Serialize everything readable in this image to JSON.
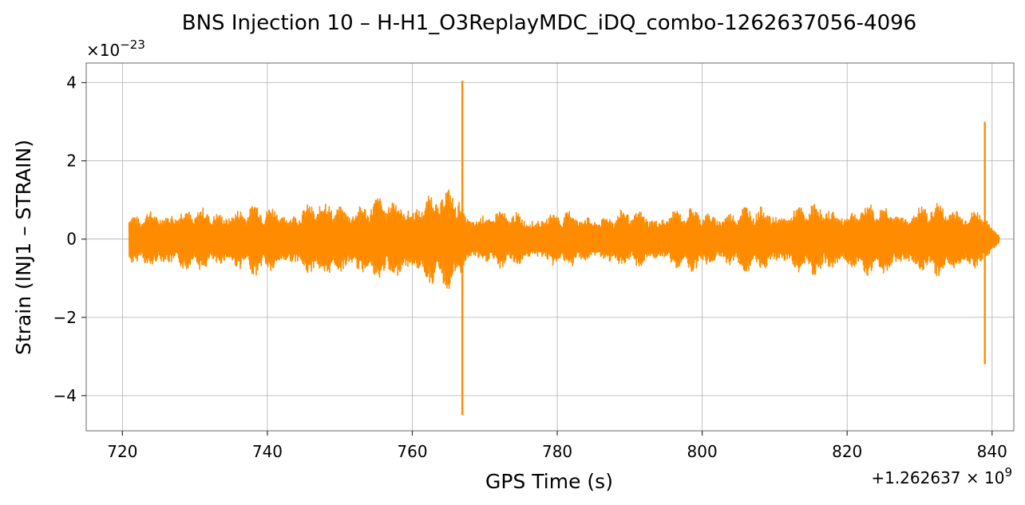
{
  "chart_data": {
    "type": "line",
    "title": "BNS Injection 10 – H-H1_O3ReplayMDC_iDQ_combo-1262637056-4096",
    "xlabel": "GPS Time (s)",
    "ylabel": "Strain (INJ1 – STRAIN)",
    "x_offset_label": "+1.262637 × 10",
    "x_offset_exp": "9",
    "y_scale_label": "×10",
    "y_scale_exp": "−23",
    "xlim": [
      715,
      843
    ],
    "ylim": [
      -4.9,
      4.5
    ],
    "xticks": [
      720,
      740,
      760,
      780,
      800,
      820,
      840
    ],
    "xtick_labels": [
      "720",
      "740",
      "760",
      "780",
      "800",
      "820",
      "840"
    ],
    "yticks": [
      -4,
      -2,
      0,
      2,
      4
    ],
    "ytick_labels": [
      "−4",
      "−2",
      "0",
      "2",
      "4"
    ],
    "grid": true,
    "series": [
      {
        "color": "#ff8c00",
        "x_range": [
          720.9,
          841.0
        ],
        "envelope": [
          {
            "x": 721.0,
            "amp": 0.6
          },
          {
            "x": 726.0,
            "amp": 1.0
          },
          {
            "x": 730.0,
            "amp": 0.8
          },
          {
            "x": 735.0,
            "amp": 0.95
          },
          {
            "x": 740.0,
            "amp": 0.95
          },
          {
            "x": 745.0,
            "amp": 0.95
          },
          {
            "x": 750.0,
            "amp": 1.1
          },
          {
            "x": 755.0,
            "amp": 1.1
          },
          {
            "x": 760.0,
            "amp": 1.2
          },
          {
            "x": 764.0,
            "amp": 1.3
          },
          {
            "x": 766.6,
            "amp": 1.4
          },
          {
            "x": 767.2,
            "amp": 0.8
          },
          {
            "x": 775.0,
            "amp": 0.75
          },
          {
            "x": 785.0,
            "amp": 0.75
          },
          {
            "x": 800.0,
            "amp": 0.85
          },
          {
            "x": 815.0,
            "amp": 0.95
          },
          {
            "x": 830.0,
            "amp": 0.95
          },
          {
            "x": 838.5,
            "amp": 1.0
          },
          {
            "x": 839.5,
            "amp": 0.4
          },
          {
            "x": 841.0,
            "amp": 0.15
          }
        ],
        "spikes": [
          {
            "x": 766.9,
            "max": 4.05,
            "min": -4.5
          },
          {
            "x": 839.0,
            "max": 3.0,
            "min": -3.2
          }
        ]
      }
    ]
  }
}
